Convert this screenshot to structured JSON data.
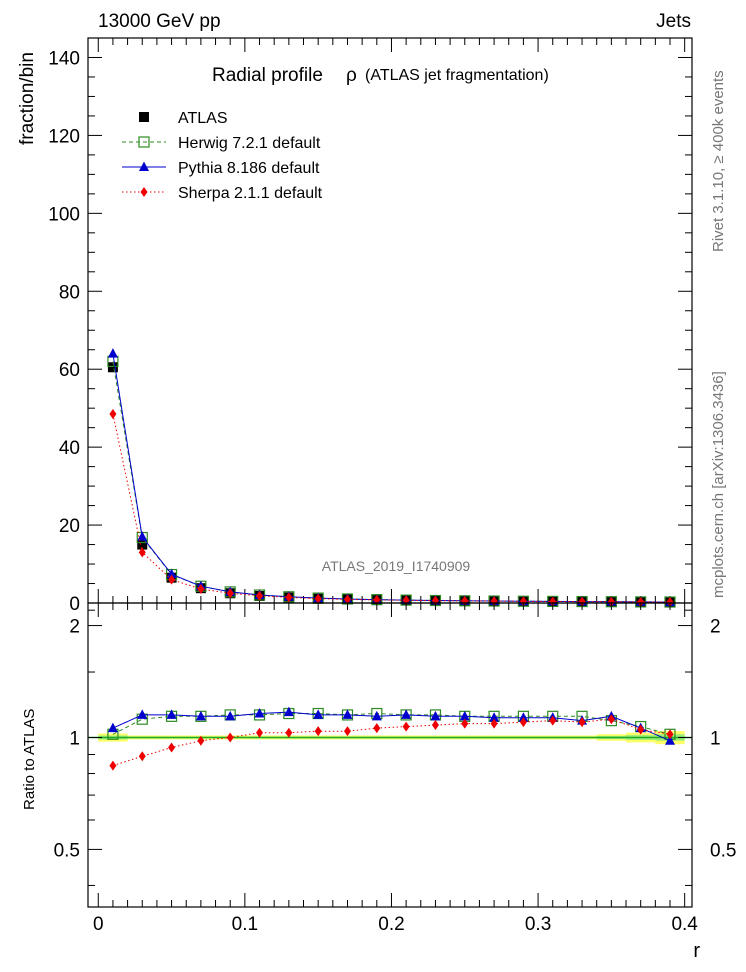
{
  "header": {
    "left": "13000 GeV pp",
    "right": "Jets"
  },
  "side_labels": {
    "rivet": "Rivet 3.1.10, ≥ 400k events",
    "mcplots": "mcplots.cern.ch [arXiv:1306.3436]"
  },
  "chart_data": [
    {
      "type": "line",
      "title_main": "Radial profile",
      "title_symbol": "ρ",
      "title_sub": "(ATLAS jet fragmentation)",
      "watermark": "ATLAS_2019_I1740909",
      "ylabel": "fraction/bin",
      "xlabel": "",
      "xlim": [
        -0.007,
        0.405
      ],
      "ylim": [
        0,
        145
      ],
      "yticks": [
        0,
        20,
        40,
        60,
        80,
        100,
        120,
        140
      ],
      "yticklabels": [
        "0",
        "20",
        "40",
        "60",
        "80",
        "100",
        "120",
        "140"
      ],
      "legend_position": "top-left",
      "x": [
        0.01,
        0.03,
        0.05,
        0.07,
        0.09,
        0.11,
        0.13,
        0.15,
        0.17,
        0.19,
        0.21,
        0.23,
        0.25,
        0.27,
        0.29,
        0.31,
        0.33,
        0.35,
        0.37,
        0.39
      ],
      "series": [
        {
          "name": "ATLAS",
          "color": "#000000",
          "marker": "square",
          "values": [
            60.5,
            15.0,
            6.5,
            3.8,
            2.5,
            1.8,
            1.4,
            1.1,
            0.9,
            0.75,
            0.65,
            0.56,
            0.5,
            0.45,
            0.4,
            0.36,
            0.33,
            0.3,
            0.27,
            0.25
          ]
        },
        {
          "name": "Herwig 7.2.1 default",
          "color": "#2e8b22",
          "marker": "open-square",
          "values": [
            62.0,
            16.8,
            7.3,
            4.3,
            2.85,
            2.05,
            1.6,
            1.26,
            1.03,
            0.86,
            0.74,
            0.64,
            0.57,
            0.51,
            0.45,
            0.41,
            0.37,
            0.33,
            0.28,
            0.25
          ]
        },
        {
          "name": "Pythia 8.186 default",
          "color": "#0000cc",
          "marker": "triangle",
          "values": [
            64.0,
            17.0,
            7.4,
            4.3,
            2.85,
            2.06,
            1.61,
            1.26,
            1.03,
            0.85,
            0.74,
            0.63,
            0.57,
            0.51,
            0.45,
            0.41,
            0.37,
            0.34,
            0.28,
            0.24
          ]
        },
        {
          "name": "Sherpa 2.1.1 default",
          "color": "#ee0000",
          "marker": "diamond",
          "values": [
            48.5,
            13.0,
            6.0,
            3.6,
            2.5,
            1.85,
            1.44,
            1.13,
            0.93,
            0.79,
            0.69,
            0.6,
            0.54,
            0.49,
            0.44,
            0.4,
            0.36,
            0.33,
            0.28,
            0.25
          ]
        }
      ]
    },
    {
      "type": "line",
      "ylabel": "Ratio to ATLAS",
      "xlabel": "r",
      "xlim": [
        -0.007,
        0.405
      ],
      "ylim": [
        0.35,
        2.3
      ],
      "yticks": [
        0.5,
        1,
        2
      ],
      "yticklabels": [
        "0.5",
        "1",
        "2"
      ],
      "xticks": [
        0,
        0.1,
        0.2,
        0.3,
        0.4
      ],
      "xticklabels": [
        "0",
        "0.1",
        "0.2",
        "0.3",
        "0.4"
      ],
      "band_color": "#ffff66",
      "band_inner_color": "#99ee77",
      "reference_color": "#22aa22",
      "x": [
        0.01,
        0.03,
        0.05,
        0.07,
        0.09,
        0.11,
        0.13,
        0.15,
        0.17,
        0.19,
        0.21,
        0.23,
        0.25,
        0.27,
        0.29,
        0.31,
        0.33,
        0.35,
        0.37,
        0.39
      ],
      "band_up": [
        1.025,
        1.012,
        1.012,
        1.012,
        1.012,
        1.012,
        1.012,
        1.012,
        1.012,
        1.012,
        1.012,
        1.012,
        1.012,
        1.012,
        1.012,
        1.012,
        1.012,
        1.02,
        1.03,
        1.04
      ],
      "band_down": [
        0.975,
        0.988,
        0.988,
        0.988,
        0.988,
        0.988,
        0.988,
        0.988,
        0.988,
        0.988,
        0.988,
        0.988,
        0.988,
        0.988,
        0.988,
        0.988,
        0.988,
        0.98,
        0.97,
        0.96
      ],
      "series": [
        {
          "name": "Herwig 7.2.1 default",
          "color": "#2e8b22",
          "marker": "open-square",
          "values": [
            1.02,
            1.12,
            1.14,
            1.14,
            1.15,
            1.15,
            1.16,
            1.16,
            1.15,
            1.16,
            1.15,
            1.15,
            1.14,
            1.14,
            1.14,
            1.14,
            1.14,
            1.11,
            1.07,
            1.02
          ]
        },
        {
          "name": "Pythia 8.186 default",
          "color": "#0000cc",
          "marker": "triangle",
          "values": [
            1.06,
            1.15,
            1.15,
            1.14,
            1.14,
            1.16,
            1.17,
            1.15,
            1.15,
            1.14,
            1.15,
            1.14,
            1.14,
            1.13,
            1.13,
            1.13,
            1.11,
            1.14,
            1.06,
            0.98
          ]
        },
        {
          "name": "Sherpa 2.1.1 default",
          "color": "#ee0000",
          "marker": "diamond",
          "values": [
            0.84,
            0.89,
            0.94,
            0.98,
            1.0,
            1.03,
            1.03,
            1.04,
            1.04,
            1.06,
            1.07,
            1.08,
            1.09,
            1.09,
            1.1,
            1.11,
            1.1,
            1.12,
            1.05,
            1.02
          ]
        }
      ]
    }
  ]
}
